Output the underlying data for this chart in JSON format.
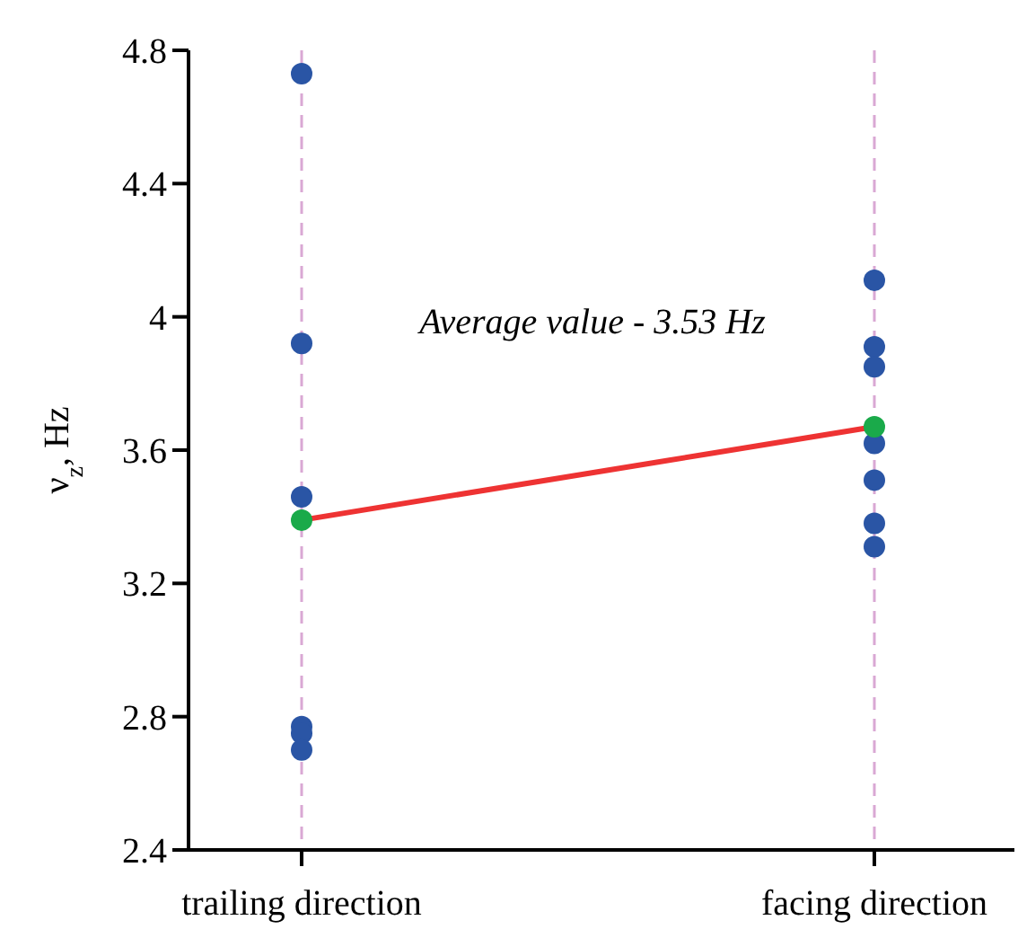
{
  "chart_data": {
    "type": "scatter",
    "ylabel": "ν$_{z}$, Hz",
    "categories": [
      "trailing direction",
      "facing direction"
    ],
    "ylim": [
      2.4,
      4.8
    ],
    "yticks": [
      2.4,
      2.8,
      3.2,
      3.6,
      4,
      4.4,
      4.8
    ],
    "grid": "x",
    "marker": "circle",
    "annotations": [
      "Average value - 3.53 Hz"
    ],
    "series": [
      {
        "color": "#2a55a5",
        "x": [
          "trailing direction",
          "trailing direction",
          "trailing direction",
          "trailing direction",
          "trailing direction",
          "trailing direction",
          "facing direction",
          "facing direction",
          "facing direction",
          "facing direction",
          "facing direction",
          "facing direction",
          "facing direction"
        ],
        "values": [
          4.73,
          3.92,
          3.46,
          2.77,
          2.75,
          2.7,
          4.11,
          3.91,
          3.85,
          3.62,
          3.51,
          3.38,
          3.31
        ]
      },
      {
        "type": "line",
        "color": "#ee3333",
        "line_style": "solid",
        "marker": "none",
        "values": [
          3.39,
          3.67
        ]
      },
      {
        "color": "#1aaa4a",
        "values": [
          3.39,
          3.67
        ]
      }
    ]
  }
}
